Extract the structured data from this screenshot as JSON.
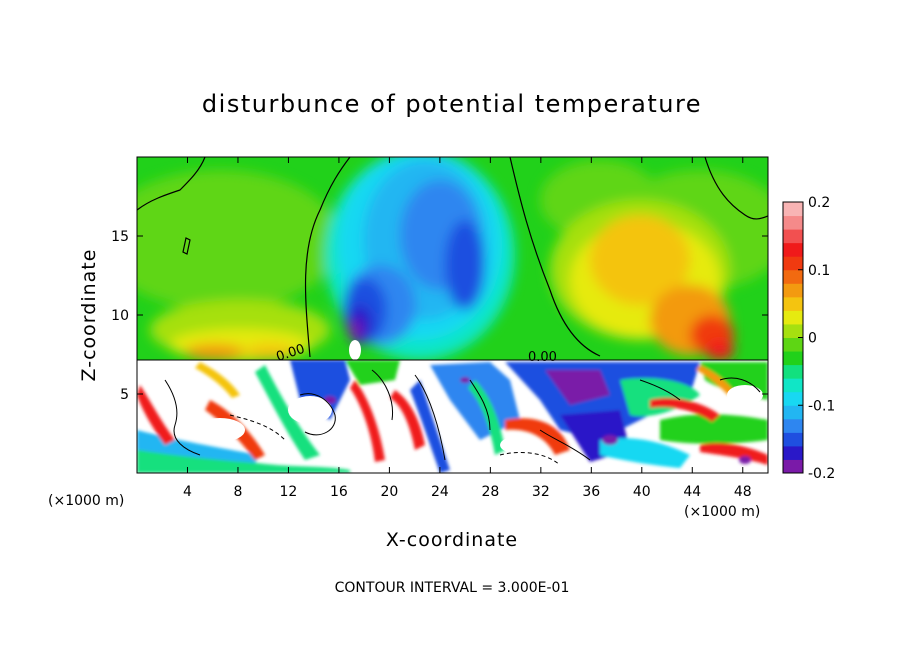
{
  "chart_data": {
    "type": "heatmap",
    "title": "disturbunce of potential temperature",
    "xlabel": "X-coordinate",
    "ylabel": "Z-coordinate",
    "x_unit_label": "(×1000 m)",
    "x_unit_label_right": "(×1000 m)",
    "footer": "CONTOUR INTERVAL = 3.000E-01",
    "xlim": [
      0,
      50
    ],
    "ylim": [
      0,
      20
    ],
    "x_ticks": [
      4,
      8,
      12,
      16,
      20,
      24,
      28,
      32,
      36,
      40,
      44,
      48
    ],
    "y_ticks": [
      5,
      10,
      15
    ],
    "colorbar": {
      "range": [
        -0.2,
        0.2
      ],
      "tick_labels": [
        "0.2",
        "0.1",
        "0",
        "-0.1",
        "-0.2"
      ],
      "tick_values": [
        0.2,
        0.1,
        0,
        -0.1,
        -0.2
      ],
      "colors": [
        "#7a1aa8",
        "#2a18c8",
        "#1f4fe0",
        "#2e86f0",
        "#22b6f2",
        "#18d8f2",
        "#10e6c6",
        "#12e07e",
        "#21d11a",
        "#5ed614",
        "#a6e010",
        "#e6ea10",
        "#f4c410",
        "#f39a10",
        "#f26a10",
        "#f03a10",
        "#f01a1a",
        "#f25050",
        "#f58a8a",
        "#f8b4b4"
      ]
    },
    "contour_labels": [
      {
        "text": "0.00",
        "x": 13.0,
        "z": 7.6
      },
      {
        "text": "0.00",
        "x": 31.7,
        "z": 7.2
      }
    ],
    "interface_height": 7.2,
    "notes": "Upper layer (z > 7.2 km): smooth field — negative blue anomaly centred near x≈20–26 (min ≈ -0.2 near x≈17, z≈9), positive orange/red anomalies near x≈8–12 and x≈42–48 (max ≈ 0.15). Lower layer: strongly mixed field with values exceeding ±0.2 (white)."
  }
}
